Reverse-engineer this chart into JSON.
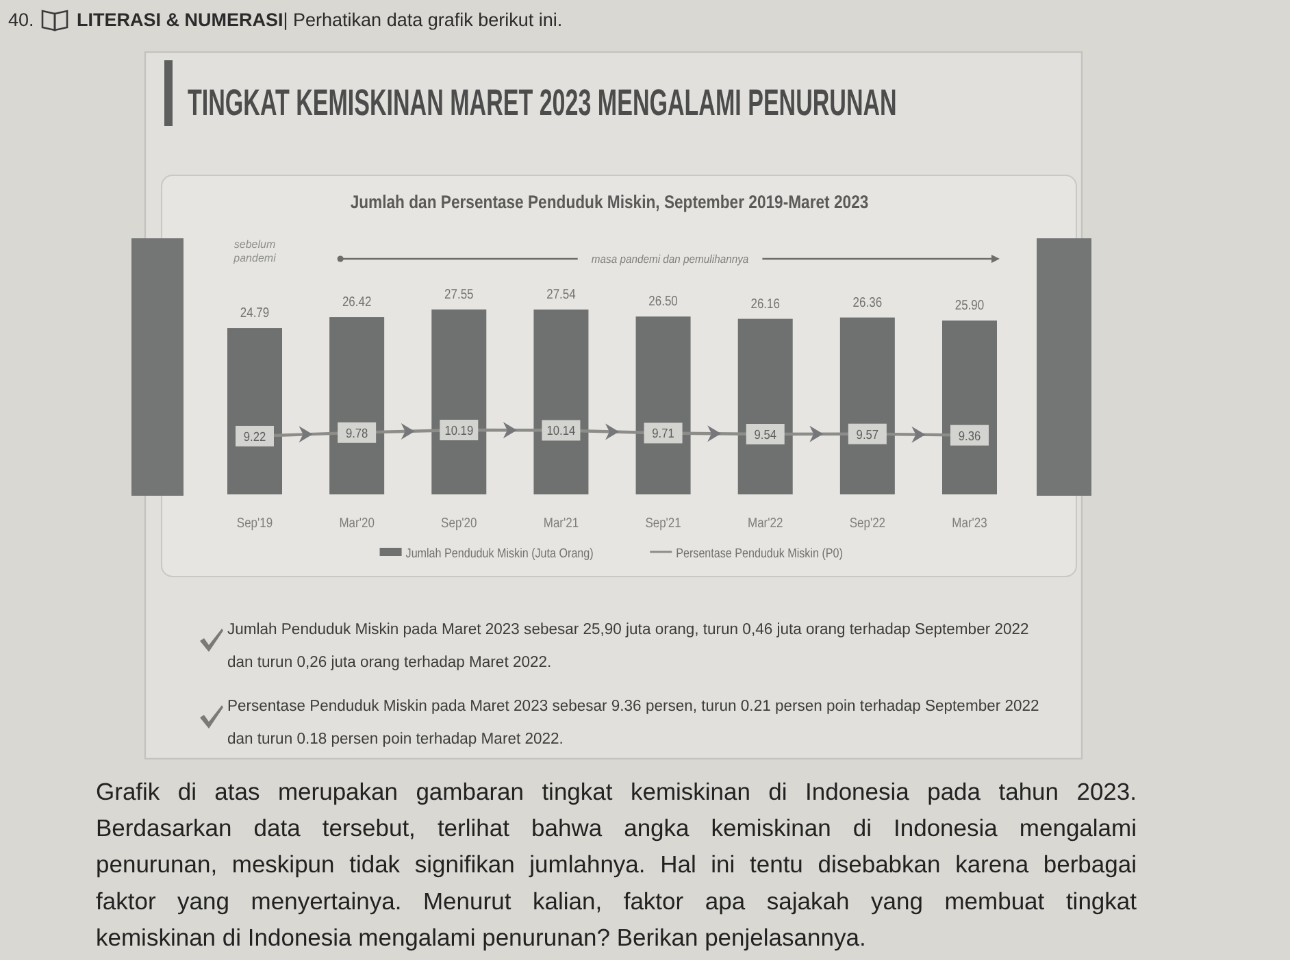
{
  "chart_data": {
    "type": "bar",
    "title": "TINGKAT KEMISKINAN MARET 2023 MENGALAMI PENURUNAN",
    "subtitle": "Jumlah dan Persentase Penduduk Miskin, September 2019-Maret 2023",
    "categories": [
      "Sep'19",
      "Mar'20",
      "Sep'20",
      "Mar'21",
      "Sep'21",
      "Mar'22",
      "Sep'22",
      "Mar'23"
    ],
    "series": [
      {
        "name": "Jumlah Penduduk Miskin (Juta Orang)",
        "color": "#6e7170",
        "values": [
          24.79,
          26.42,
          27.55,
          27.54,
          26.5,
          26.16,
          26.36,
          25.9
        ],
        "value_labels": [
          "24.79",
          "26.42",
          "27.55",
          "27.54",
          "26.50",
          "26.16",
          "26.36",
          "25.90"
        ]
      },
      {
        "name": "Persentase Penduduk Miskin (P0)",
        "type": "line",
        "axis": "y2",
        "color": "#8c8c89",
        "marker": "square",
        "values": [
          9.22,
          9.78,
          10.19,
          10.14,
          9.71,
          9.54,
          9.57,
          9.36
        ],
        "value_labels": [
          "9.22",
          "9.78",
          "10.19",
          "10.14",
          "9.71",
          "9.54",
          "9.57",
          "9.36"
        ]
      }
    ],
    "legend": "bottom",
    "annotations": [
      "40.",
      "LITERASI & NUMERASI",
      "| Perhatikan data grafik berikut ini.",
      "sebelum pandemi",
      "masa pandemi dan pemulihannya",
      "Jumlah Penduduk Miskin pada Maret 2023 sebesar 25,90 juta orang, turun 0,46 juta orang terhadap September 2022 dan turun 0,26 juta orang terhadap Maret 2022.",
      "Persentase Penduduk Miskin pada Maret 2023 sebesar 9.36 persen, turun 0.21 persen poin terhadap September 2022 dan turun 0.18 persen poin terhadap Maret 2022.",
      "Grafik di atas merupakan gambaran tingkat kemiskinan di Indonesia pada tahun 2023. Berdasarkan data tersebut, terlihat bahwa angka kemiskinan di Indonesia mengalami penurunan, meskipun tidak signifikan jumlahnya. Hal ini tentu disebabkan karena berbagai faktor yang menyertainya. Menurut kalian, faktor apa sajakah yang membuat tingkat kemiskinan di Indonesia mengalami penurunan? Berikan penjelasannya."
    ]
  }
}
